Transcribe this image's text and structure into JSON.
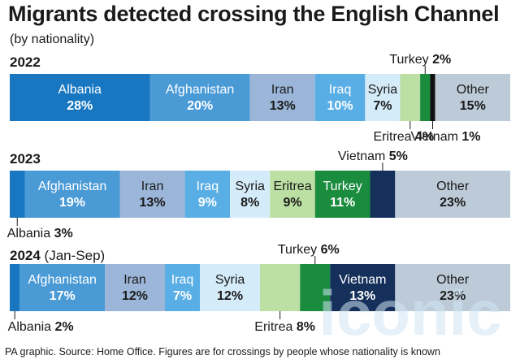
{
  "title": "Migrants detected crossing the English Channel",
  "subtitle": "(by nationality)",
  "source": "PA graphic. Source: Home Office. Figures are for crossings by people whose nationality is known",
  "watermark": "iconic",
  "chart_data": {
    "type": "bar",
    "orientation": "horizontal-stacked-100",
    "unit": "%",
    "rows": [
      {
        "year": "2022",
        "period": "",
        "segments": [
          {
            "label": "Albania",
            "value": 28,
            "color": "#1877c0",
            "label_pos": "inside",
            "text_color": "#ffffff"
          },
          {
            "label": "Afghanistan",
            "value": 20,
            "color": "#4a9ad6",
            "label_pos": "inside",
            "text_color": "#ffffff"
          },
          {
            "label": "Iran",
            "value": 13,
            "color": "#9bb6d8",
            "label_pos": "inside",
            "text_color": "#1a1a1a"
          },
          {
            "label": "Iraq",
            "value": 10,
            "color": "#5aaee6",
            "label_pos": "inside",
            "text_color": "#ffffff"
          },
          {
            "label": "Syria",
            "value": 7,
            "color": "#d4ebf9",
            "label_pos": "inside",
            "text_color": "#1a1a1a"
          },
          {
            "label": "Eritrea",
            "value": 4,
            "color": "#bcdfa3",
            "label_pos": "below",
            "text_color": "#1a1a1a"
          },
          {
            "label": "Turkey",
            "value": 2,
            "color": "#1a8c3e",
            "label_pos": "above",
            "text_color": "#1a1a1a"
          },
          {
            "label": "Vietnam",
            "value": 1,
            "color": "#111111",
            "label_pos": "below",
            "text_color": "#1a1a1a"
          },
          {
            "label": "Other",
            "value": 15,
            "color": "#bccbd7",
            "label_pos": "inside",
            "text_color": "#1a1a1a"
          }
        ]
      },
      {
        "year": "2023",
        "period": "",
        "segments": [
          {
            "label": "Albania",
            "value": 3,
            "color": "#1877c0",
            "label_pos": "below",
            "text_color": "#1a1a1a"
          },
          {
            "label": "Afghanistan",
            "value": 19,
            "color": "#4a9ad6",
            "label_pos": "inside",
            "text_color": "#ffffff"
          },
          {
            "label": "Iran",
            "value": 13,
            "color": "#9bb6d8",
            "label_pos": "inside",
            "text_color": "#1a1a1a"
          },
          {
            "label": "Iraq",
            "value": 9,
            "color": "#5aaee6",
            "label_pos": "inside",
            "text_color": "#ffffff"
          },
          {
            "label": "Syria",
            "value": 8,
            "color": "#d4ebf9",
            "label_pos": "inside",
            "text_color": "#1a1a1a"
          },
          {
            "label": "Eritrea",
            "value": 9,
            "color": "#bcdfa3",
            "label_pos": "inside",
            "text_color": "#1a1a1a"
          },
          {
            "label": "Turkey",
            "value": 11,
            "color": "#1a8c3e",
            "label_pos": "inside",
            "text_color": "#ffffff"
          },
          {
            "label": "Vietnam",
            "value": 5,
            "color": "#15305a",
            "label_pos": "above",
            "text_color": "#1a1a1a"
          },
          {
            "label": "Other",
            "value": 23,
            "color": "#bccbd7",
            "label_pos": "inside",
            "text_color": "#1a1a1a"
          }
        ]
      },
      {
        "year": "2024",
        "period": "(Jan-Sep)",
        "segments": [
          {
            "label": "Albania",
            "value": 2,
            "color": "#1877c0",
            "label_pos": "below",
            "text_color": "#1a1a1a"
          },
          {
            "label": "Afghanistan",
            "value": 17,
            "color": "#4a9ad6",
            "label_pos": "inside",
            "text_color": "#ffffff"
          },
          {
            "label": "Iran",
            "value": 12,
            "color": "#9bb6d8",
            "label_pos": "inside",
            "text_color": "#1a1a1a"
          },
          {
            "label": "Iraq",
            "value": 7,
            "color": "#5aaee6",
            "label_pos": "inside",
            "text_color": "#ffffff"
          },
          {
            "label": "Syria",
            "value": 12,
            "color": "#d4ebf9",
            "label_pos": "inside",
            "text_color": "#1a1a1a"
          },
          {
            "label": "Eritrea",
            "value": 8,
            "color": "#bcdfa3",
            "label_pos": "below",
            "text_color": "#1a1a1a"
          },
          {
            "label": "Turkey",
            "value": 6,
            "color": "#1a8c3e",
            "label_pos": "above",
            "text_color": "#1a1a1a"
          },
          {
            "label": "Vietnam",
            "value": 13,
            "color": "#15305a",
            "label_pos": "inside",
            "text_color": "#ffffff"
          },
          {
            "label": "Other",
            "value": 23,
            "color": "#bccbd7",
            "label_pos": "inside",
            "text_color": "#1a1a1a"
          }
        ]
      }
    ]
  }
}
